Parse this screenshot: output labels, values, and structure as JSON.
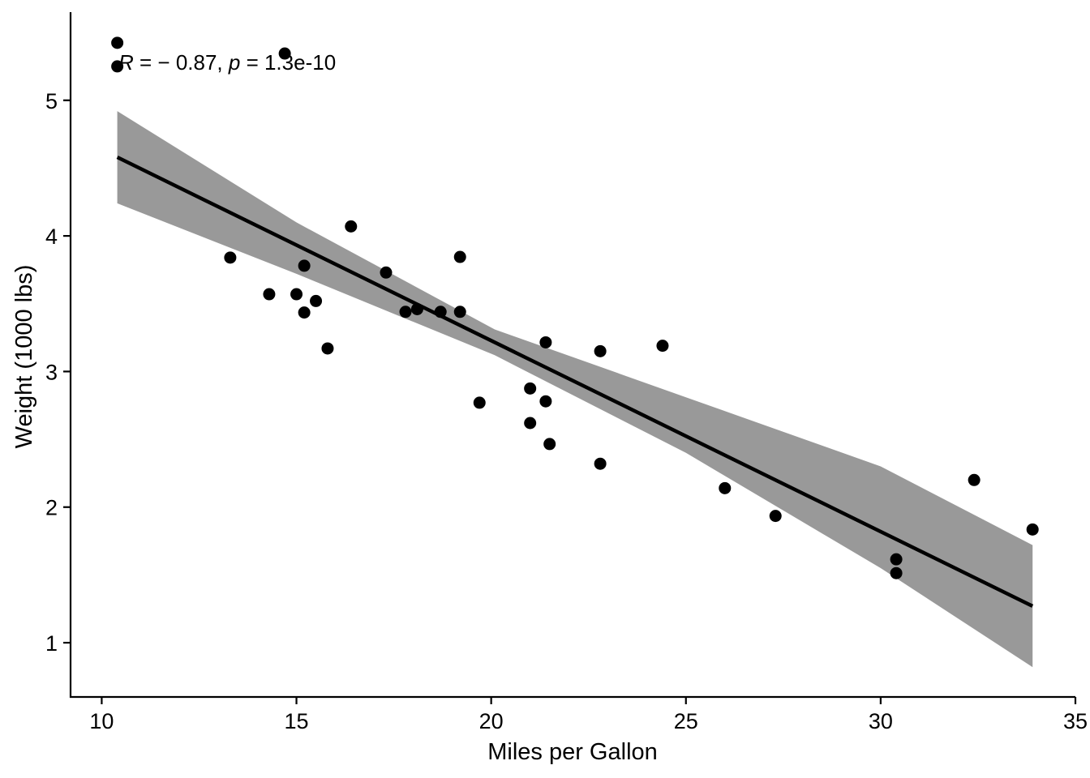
{
  "chart_data": {
    "type": "scatter",
    "xlabel": "Miles per Gallon",
    "ylabel": "Weight (1000 lbs)",
    "xlim": [
      9.2,
      35.0
    ],
    "ylim": [
      0.6,
      5.65
    ],
    "x_ticks": [
      10,
      15,
      20,
      25,
      30,
      35
    ],
    "y_ticks": [
      1,
      2,
      3,
      4,
      5
    ],
    "grid": false,
    "annotation": {
      "r_symbol": "R",
      "r_text": " = − 0.87, ",
      "p_symbol": "p",
      "p_text": " = 1.3e-10"
    },
    "points": [
      {
        "x": 21.0,
        "y": 2.62
      },
      {
        "x": 21.0,
        "y": 2.875
      },
      {
        "x": 22.8,
        "y": 2.32
      },
      {
        "x": 21.4,
        "y": 3.215
      },
      {
        "x": 18.7,
        "y": 3.44
      },
      {
        "x": 18.1,
        "y": 3.46
      },
      {
        "x": 14.3,
        "y": 3.57
      },
      {
        "x": 24.4,
        "y": 3.19
      },
      {
        "x": 22.8,
        "y": 3.15
      },
      {
        "x": 19.2,
        "y": 3.44
      },
      {
        "x": 17.8,
        "y": 3.44
      },
      {
        "x": 16.4,
        "y": 4.07
      },
      {
        "x": 17.3,
        "y": 3.73
      },
      {
        "x": 15.2,
        "y": 3.78
      },
      {
        "x": 10.4,
        "y": 5.25
      },
      {
        "x": 10.4,
        "y": 5.424
      },
      {
        "x": 14.7,
        "y": 5.345
      },
      {
        "x": 32.4,
        "y": 2.2
      },
      {
        "x": 30.4,
        "y": 1.615
      },
      {
        "x": 33.9,
        "y": 1.835
      },
      {
        "x": 21.5,
        "y": 2.465
      },
      {
        "x": 15.5,
        "y": 3.52
      },
      {
        "x": 15.2,
        "y": 3.435
      },
      {
        "x": 13.3,
        "y": 3.84
      },
      {
        "x": 19.2,
        "y": 3.845
      },
      {
        "x": 27.3,
        "y": 1.935
      },
      {
        "x": 26.0,
        "y": 2.14
      },
      {
        "x": 30.4,
        "y": 1.513
      },
      {
        "x": 15.8,
        "y": 3.17
      },
      {
        "x": 19.7,
        "y": 2.77
      },
      {
        "x": 15.0,
        "y": 3.57
      },
      {
        "x": 21.4,
        "y": 2.78
      }
    ],
    "fit_line": {
      "x": [
        10.4,
        33.9
      ],
      "y": [
        4.58,
        1.27
      ]
    },
    "confidence_band": {
      "x": [
        10.4,
        15.0,
        20.09,
        25.0,
        30.0,
        33.9
      ],
      "lower": [
        4.24,
        3.72,
        3.12,
        2.4,
        1.55,
        0.82
      ],
      "upper": [
        4.92,
        4.1,
        3.31,
        2.81,
        2.3,
        1.72
      ]
    },
    "colors": {
      "points": "#000000",
      "line": "#000000",
      "band": "#999999",
      "axis": "#000000"
    }
  }
}
